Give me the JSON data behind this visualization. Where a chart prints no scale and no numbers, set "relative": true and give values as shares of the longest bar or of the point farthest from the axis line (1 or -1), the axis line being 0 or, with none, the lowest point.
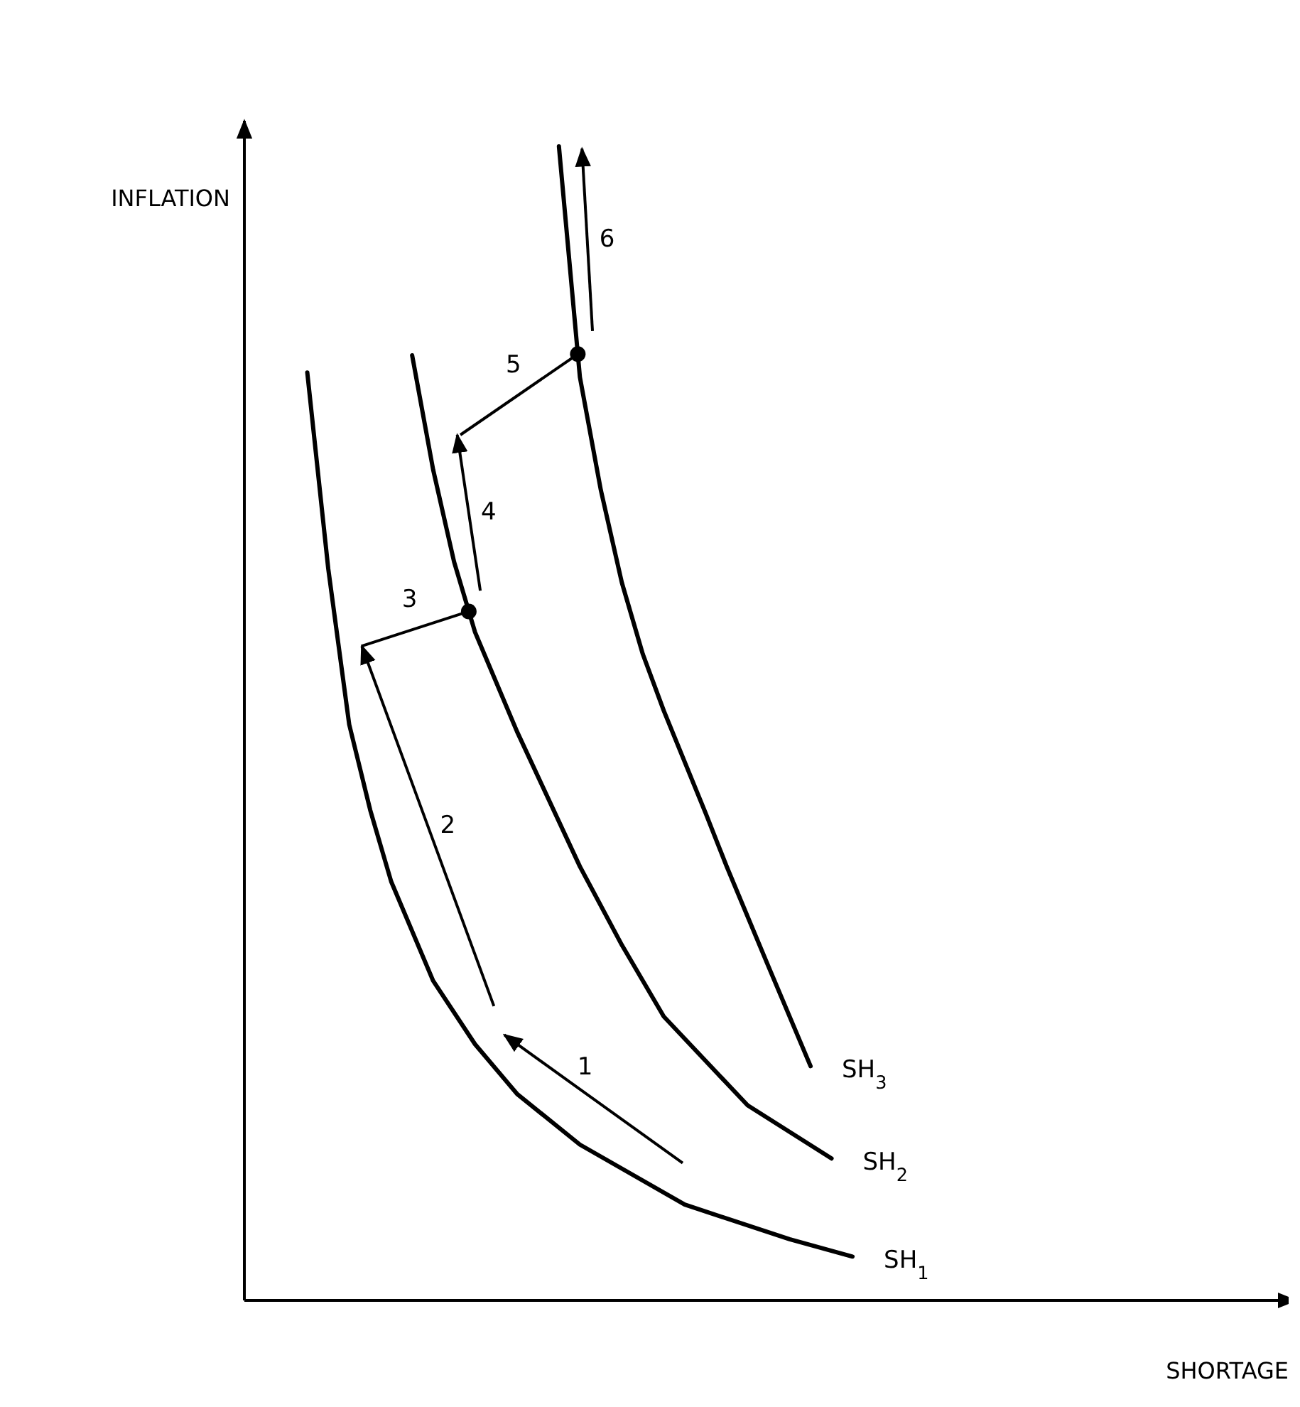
{
  "chart_data": {
    "type": "line",
    "relative": true,
    "xlabel": "SHORTAGE",
    "ylabel": "INFLATION",
    "marker": "none",
    "line_style": "solid",
    "categories": [
      null,
      null,
      null,
      null,
      null,
      null,
      null,
      null,
      null,
      null,
      null,
      null,
      null,
      null,
      null,
      null,
      null,
      null,
      null,
      null,
      null,
      null,
      null,
      null,
      null,
      null,
      null,
      null,
      null,
      null,
      null,
      null,
      null,
      null,
      null,
      null,
      null,
      null,
      null,
      null,
      null,
      null,
      null,
      null,
      null,
      null,
      null,
      null,
      null,
      null,
      null
    ],
    "series": [
      {
        "name": "SH$_{1}$",
        "color": "#000000",
        "values": [
          null,
          null,
          null,
          0.804,
          0.634,
          0.499,
          0.425,
          0.363,
          null,
          0.277,
          null,
          0.222,
          null,
          0.179,
          null,
          null,
          0.135,
          null,
          null,
          null,
          null,
          0.083,
          null,
          null,
          null,
          null,
          0.053,
          null,
          null,
          0.038,
          null,
          null,
          null,
          null,
          null,
          null,
          null,
          null,
          null,
          null,
          null,
          null,
          null,
          null,
          null,
          null,
          null,
          null,
          null,
          null,
          null
        ]
      },
      {
        "name": "SH$_{2}$",
        "color": "#000000",
        "values": [
          null,
          null,
          null,
          null,
          null,
          null,
          null,
          null,
          0.819,
          0.72,
          0.64,
          0.579,
          null,
          0.493,
          null,
          null,
          0.376,
          null,
          0.308,
          null,
          0.246,
          null,
          null,
          null,
          0.169,
          null,
          null,
          null,
          0.123,
          null,
          null,
          null,
          null,
          null,
          null,
          null,
          null,
          null,
          null,
          null,
          null,
          null,
          null,
          null,
          null,
          null,
          null,
          null,
          null,
          null,
          null
        ]
      },
      {
        "name": "SH$_{3}$",
        "color": "#000000",
        "values": [
          null,
          null,
          null,
          null,
          null,
          null,
          null,
          null,
          null,
          null,
          null,
          null,
          null,
          null,
          null,
          1.0,
          0.8,
          0.702,
          0.622,
          0.56,
          0.511,
          null,
          0.422,
          0.376,
          null,
          0.289,
          null,
          0.203,
          null,
          null,
          null,
          null,
          null,
          null,
          null,
          null,
          null,
          null,
          null,
          null,
          null,
          null,
          null,
          null,
          null,
          null,
          null,
          null,
          null,
          null,
          null
        ]
      }
    ],
    "annotations": [
      "1",
      "2",
      "3",
      "4",
      "5",
      "6"
    ]
  }
}
